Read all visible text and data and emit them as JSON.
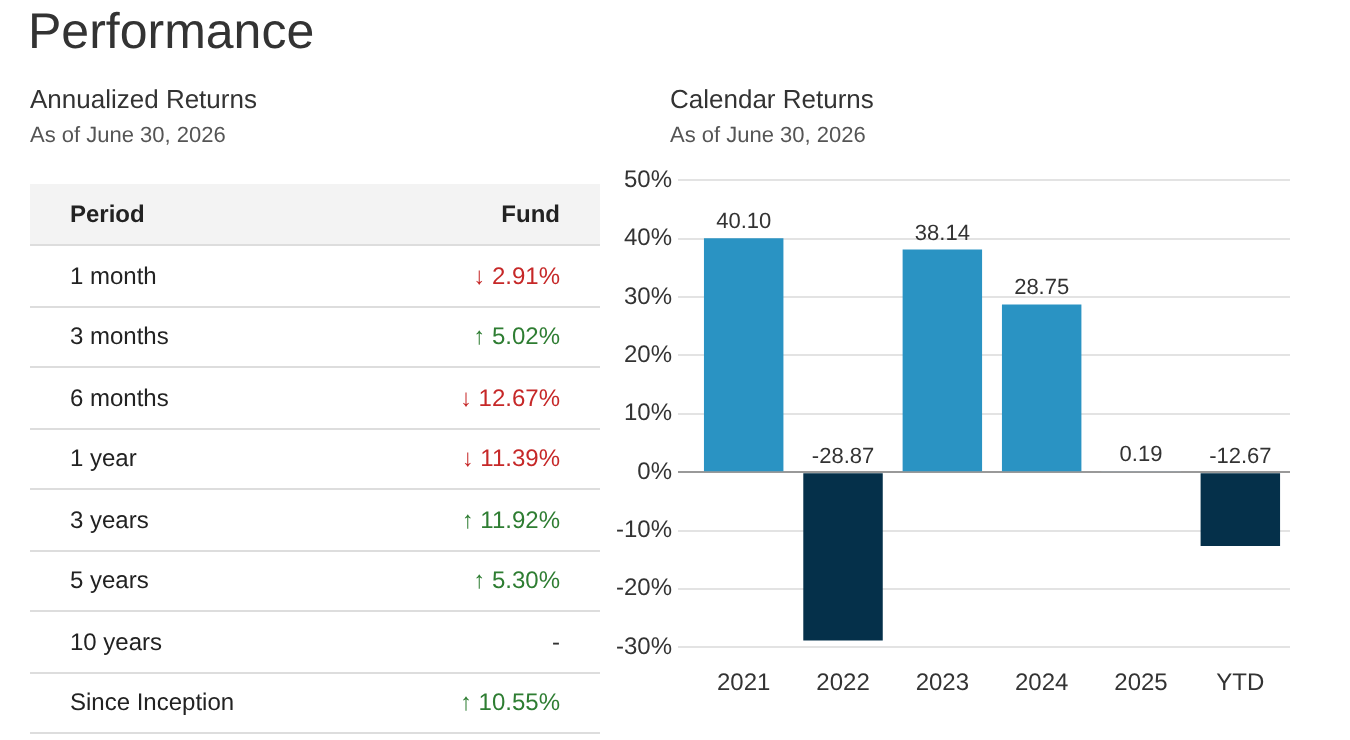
{
  "chart_data": [
    {
      "type": "other",
      "title": "Annualized Returns",
      "subtitle": "As of June 30, 2026",
      "annotations": [
        "Performance",
        "Period",
        "Fund"
      ],
      "categories": [
        "1 month",
        "3 months",
        "6 months",
        "1 year",
        "3 years",
        "5 years",
        "10 years",
        "Since Inception"
      ],
      "colors": [
        "#c62828",
        "#2e7d32",
        "#c62828",
        "#c62828",
        "#2e7d32",
        "#2e7d32",
        "#333333",
        "#2e7d32"
      ],
      "value_labels": [
        "↓ 2.91%",
        "↑ 5.02%",
        "↓ 12.67%",
        "↓ 11.39%",
        "↑ 11.92%",
        "↑ 5.30%",
        "-",
        "↑ 10.55%"
      ]
    },
    {
      "type": "bar",
      "title": "Calendar Returns",
      "subtitle": "As of June 30, 2026",
      "categories": [
        "2021",
        "2022",
        "2023",
        "2024",
        "2025",
        "YTD"
      ],
      "values": [
        40.1,
        -28.87,
        38.14,
        28.75,
        0.19,
        -12.67
      ],
      "colors": [
        "#2a93c3",
        "#05304a",
        "#2a93c3",
        "#2a93c3",
        "#9bb3c4",
        "#05304a"
      ],
      "value_labels": [
        "40.10",
        "-28.87",
        "38.14",
        "28.75",
        "0.19",
        "-12.67"
      ],
      "ylim": [
        -30,
        50
      ],
      "yticks": [
        {
          "value": -30,
          "label": "-30%"
        },
        {
          "value": -20,
          "label": "-20%"
        },
        {
          "value": -10,
          "label": "-10%"
        },
        {
          "value": 0,
          "label": "0%"
        },
        {
          "value": 10,
          "label": "10%"
        },
        {
          "value": 20,
          "label": "20%"
        },
        {
          "value": 30,
          "label": "30%"
        },
        {
          "value": 40,
          "label": "40%"
        },
        {
          "value": 50,
          "label": "50%"
        }
      ],
      "grid": "y"
    }
  ]
}
